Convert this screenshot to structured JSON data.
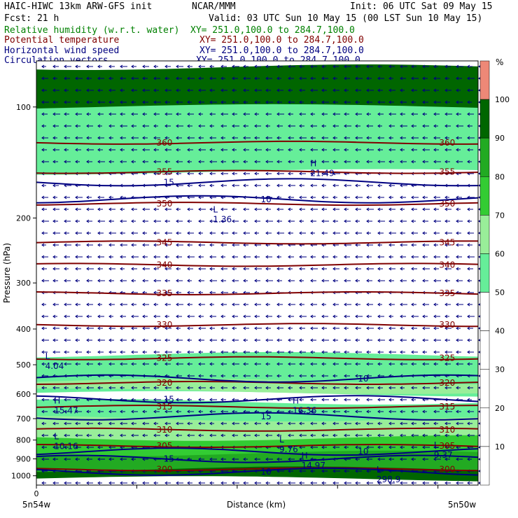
{
  "header": {
    "title_left": "HAIC-HIWC 13km ARW-GFS init",
    "org": "NCAR/MMM",
    "init": "Init: 06 UTC Sat 09 May 15",
    "fcst": "Fcst:    21 h",
    "valid": "Valid: 03 UTC Sun 10 May 15 (00 LST Sun 10 May 15)",
    "fields": [
      {
        "name": "Relative humidity (w.r.t. water)",
        "xy": "XY= 251.0,100.0 to 284.7,100.0",
        "color": "#008000"
      },
      {
        "name": "Potential temperature",
        "xy": "XY= 251.0,100.0 to 284.7,100.0",
        "color": "#800000"
      },
      {
        "name": "Horizontal wind speed",
        "xy": "XY= 251.0,100.0 to 284.7,100.0",
        "color": "#000080"
      },
      {
        "name": "Circulation vectors",
        "xy": "XY= 251.0,100.0 to 284.7,100.0",
        "color": "#000080"
      }
    ]
  },
  "chart_data": {
    "type": "heatmap",
    "ylabel": "Pressure (hPa)",
    "xlabel": "Distance (km)",
    "y_scale": "log",
    "ylim": [
      1060,
      75
    ],
    "y_ticks": [
      100,
      200,
      300,
      400,
      500,
      600,
      700,
      800,
      900,
      1000
    ],
    "x_ticks": [
      "0"
    ],
    "x_end_labels": [
      "5n54w",
      "5n50w"
    ],
    "colorbar": {
      "unit": "%",
      "levels": [
        10,
        20,
        30,
        40,
        50,
        60,
        70,
        80,
        90,
        100
      ],
      "colors": [
        "#ffffff",
        "#ffffff",
        "#ffffff",
        "#ffffff",
        "#ffffff",
        "#66ee99",
        "#99ee99",
        "#33cc33",
        "#22aa22",
        "#006600",
        "#ee8877"
      ]
    },
    "rh_shading": [
      {
        "level": 50,
        "p_top": 84,
        "p_bottom": 150,
        "color": "#66ee99"
      },
      {
        "level": 90,
        "p_top": 78,
        "p_bottom": 100,
        "color": "#006600"
      },
      {
        "level": 50,
        "p_top": 470,
        "p_bottom": 600,
        "color": "#66ee99"
      },
      {
        "level": 60,
        "p_top": 555,
        "p_bottom": 590,
        "color": "#99ee99"
      },
      {
        "level": 50,
        "p_top": 630,
        "p_bottom": 760,
        "color": "#66ee99"
      },
      {
        "level": 60,
        "p_top": 700,
        "p_bottom": 800,
        "color": "#99ee99"
      },
      {
        "level": 70,
        "p_top": 790,
        "p_bottom": 900,
        "color": "#33cc33"
      },
      {
        "level": 80,
        "p_top": 870,
        "p_bottom": 980,
        "color": "#22aa22"
      },
      {
        "level": 90,
        "p_top": 960,
        "p_bottom": 1020,
        "color": "#006600"
      }
    ],
    "theta_contours": [
      {
        "value": 360,
        "p": 125
      },
      {
        "value": 355,
        "p": 150
      },
      {
        "value": 350,
        "p": 183
      },
      {
        "value": 345,
        "p": 233
      },
      {
        "value": 340,
        "p": 268
      },
      {
        "value": 335,
        "p": 320
      },
      {
        "value": 330,
        "p": 390
      },
      {
        "value": 325,
        "p": 480
      },
      {
        "value": 320,
        "p": 560
      },
      {
        "value": 315,
        "p": 650
      },
      {
        "value": 310,
        "p": 750
      },
      {
        "value": 305,
        "p": 830
      },
      {
        "value": 300,
        "p": 960
      }
    ],
    "wind_contours": [
      {
        "value": 15,
        "p": 160
      },
      {
        "value": 10,
        "p": 178
      },
      {
        "value": 10,
        "p": 545
      },
      {
        "value": 15,
        "p": 620
      },
      {
        "value": 15,
        "p": 690
      },
      {
        "value": 10,
        "p": 860
      },
      {
        "value": 15,
        "p": 900
      },
      {
        "value": 10,
        "p": 975
      }
    ],
    "extrema": [
      {
        "label": "H",
        "value": "21.49",
        "x": 0.62,
        "p": 150
      },
      {
        "label": "L",
        "value": "1.36",
        "x": 0.4,
        "p": 200
      },
      {
        "label": "L",
        "value": "4.04",
        "x": 0.02,
        "p": 500
      },
      {
        "label": "H",
        "value": "15.47",
        "x": 0.04,
        "p": 660
      },
      {
        "label": "H",
        "value": "16.36",
        "x": 0.58,
        "p": 660
      },
      {
        "label": "L",
        "value": "10.16",
        "x": 0.04,
        "p": 825
      },
      {
        "label": "L",
        "value": "9.76",
        "x": 0.55,
        "p": 840
      },
      {
        "label": "L",
        "value": "9.37",
        "x": 0.9,
        "p": 870
      },
      {
        "label": "H",
        "value": "14.97",
        "x": 0.6,
        "p": 930
      },
      {
        "label": "L",
        "value": "298.9",
        "x": 0.77,
        "p": 1015
      }
    ]
  }
}
